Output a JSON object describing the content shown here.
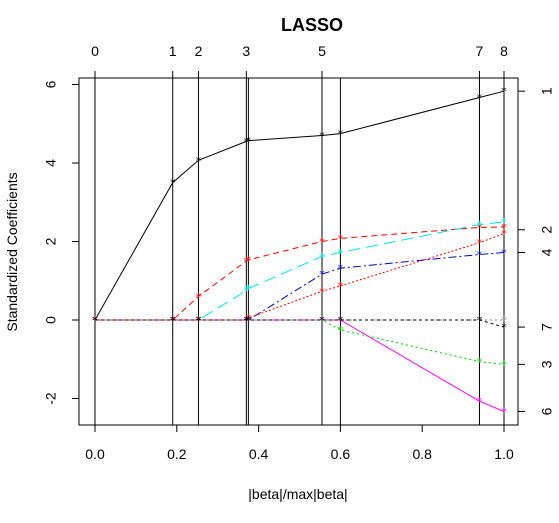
{
  "chart_data": {
    "type": "line",
    "title": "LASSO",
    "xlabel": "|beta|/max|beta|",
    "ylabel": "Standardized Coefficients",
    "xlim": [
      0.0,
      1.0
    ],
    "ylim": [
      -2.6,
      6.2
    ],
    "x_ticks": [
      0.0,
      0.2,
      0.4,
      0.6,
      0.8,
      1.0
    ],
    "x_tick_labels": [
      "0.0",
      "0.2",
      "0.4",
      "0.6",
      "0.8",
      "1.0"
    ],
    "y_ticks": [
      -2,
      0,
      2,
      4,
      6
    ],
    "y_tick_labels": [
      "-2",
      "0",
      "2",
      "4",
      "6"
    ],
    "grid": false,
    "breakpoints": [
      0.0,
      0.19,
      0.253,
      0.37,
      0.375,
      0.555,
      0.6,
      0.94,
      1.0
    ],
    "top_axis": [
      {
        "x": 0.0,
        "label": "0"
      },
      {
        "x": 0.19,
        "label": "1"
      },
      {
        "x": 0.253,
        "label": "2"
      },
      {
        "x": 0.37,
        "label": "3"
      },
      {
        "x": 0.555,
        "label": "5"
      },
      {
        "x": 0.94,
        "label": "7"
      },
      {
        "x": 1.0,
        "label": "8"
      }
    ],
    "right_axis": [
      {
        "y": 5.83,
        "label": "1"
      },
      {
        "y": 2.3,
        "label": "2"
      },
      {
        "y": 1.72,
        "label": "4"
      },
      {
        "y": -0.18,
        "label": "7"
      },
      {
        "y": -1.13,
        "label": "3"
      },
      {
        "y": -2.33,
        "label": "6"
      }
    ],
    "series": [
      {
        "color": "#000000",
        "dash": "",
        "values": [
          0,
          3.5,
          4.07,
          4.55,
          4.57,
          4.7,
          4.75,
          5.67,
          5.83
        ]
      },
      {
        "color": "#ff0000",
        "dash": "6,4",
        "values": [
          0,
          0,
          0.6,
          1.5,
          1.53,
          2.0,
          2.08,
          2.36,
          2.37
        ]
      },
      {
        "color": "#00cc00",
        "dash": "2,3",
        "values": [
          0,
          0,
          0,
          0,
          0,
          0,
          -0.25,
          -1.06,
          -1.13
        ]
      },
      {
        "color": "#0000cc",
        "dash": "8,3,2,3",
        "values": [
          0,
          0,
          0,
          0,
          0,
          1.17,
          1.32,
          1.67,
          1.72
        ]
      },
      {
        "color": "#00e5ee",
        "dash": "12,6",
        "values": [
          0,
          0,
          0,
          0.75,
          0.8,
          1.62,
          1.72,
          2.43,
          2.5
        ]
      },
      {
        "color": "#ff00ff",
        "dash": "",
        "values": [
          0,
          0,
          0,
          0,
          0,
          0,
          0,
          -2.07,
          -2.33
        ]
      },
      {
        "color": "#888888",
        "dash": "2,3",
        "values": [
          0,
          0,
          0,
          0,
          0,
          0,
          0,
          0,
          0
        ]
      },
      {
        "color": "#ff0000",
        "dash": "2,2",
        "values": [
          0,
          0,
          0,
          0,
          0.05,
          0.73,
          0.87,
          1.97,
          2.2
        ]
      },
      {
        "color": "#000000",
        "dash": "3,3",
        "values": [
          0,
          0,
          0,
          0,
          0,
          0,
          0,
          0,
          -0.18
        ]
      }
    ]
  }
}
